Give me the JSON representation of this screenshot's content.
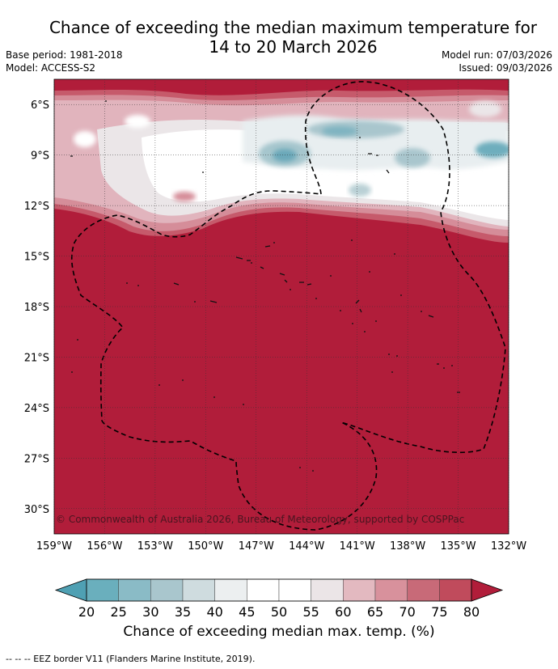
{
  "header": {
    "title_line1": "Chance of exceeding the median maximum temperature for",
    "title_line2": "14 to 20 March 2026",
    "base_period": "Base period: 1981-2018",
    "model": "Model: ACCESS-S2",
    "model_run": "Model run: 07/03/2026",
    "issued": "Issued: 09/03/2026"
  },
  "map": {
    "lon_range": [
      -159,
      -132
    ],
    "lat_range": [
      -31.5,
      -4.5
    ],
    "lon_ticks": [
      -159,
      -156,
      -153,
      -150,
      -147,
      -144,
      -141,
      -138,
      -135,
      -132
    ],
    "lon_tick_labels": [
      "159°W",
      "156°W",
      "153°W",
      "150°W",
      "147°W",
      "144°W",
      "141°W",
      "138°W",
      "135°W",
      "132°W"
    ],
    "lat_ticks": [
      -6,
      -9,
      -12,
      -15,
      -18,
      -21,
      -24,
      -27,
      -30
    ],
    "lat_tick_labels": [
      "6°S",
      "9°S",
      "12°S",
      "15°S",
      "18°S",
      "21°S",
      "24°S",
      "27°S",
      "30°S"
    ],
    "copyright": "© Commonwealth of Australia 2026, Bureau of Meteorology, supported by COSPPac",
    "background_color": "#b11d3a"
  },
  "colorbar": {
    "labels": [
      "20",
      "25",
      "30",
      "35",
      "40",
      "45",
      "50",
      "55",
      "60",
      "65",
      "70",
      "75",
      "80"
    ],
    "colors": [
      "#4fa0b3",
      "#6aafbd",
      "#8abbc6",
      "#a9c6cd",
      "#cfdcdf",
      "#eceff0",
      "#ffffff",
      "#ffffff",
      "#ebe5e7",
      "#e3b9c0",
      "#d8919c",
      "#c86a78",
      "#c04b5c",
      "#b11d3a"
    ],
    "title": "Chance of exceeding median max. temp. (%)"
  },
  "footer": {
    "legend_text": "--  --  -- EEZ border V11 (Flanders Marine Institute, 2019)."
  }
}
